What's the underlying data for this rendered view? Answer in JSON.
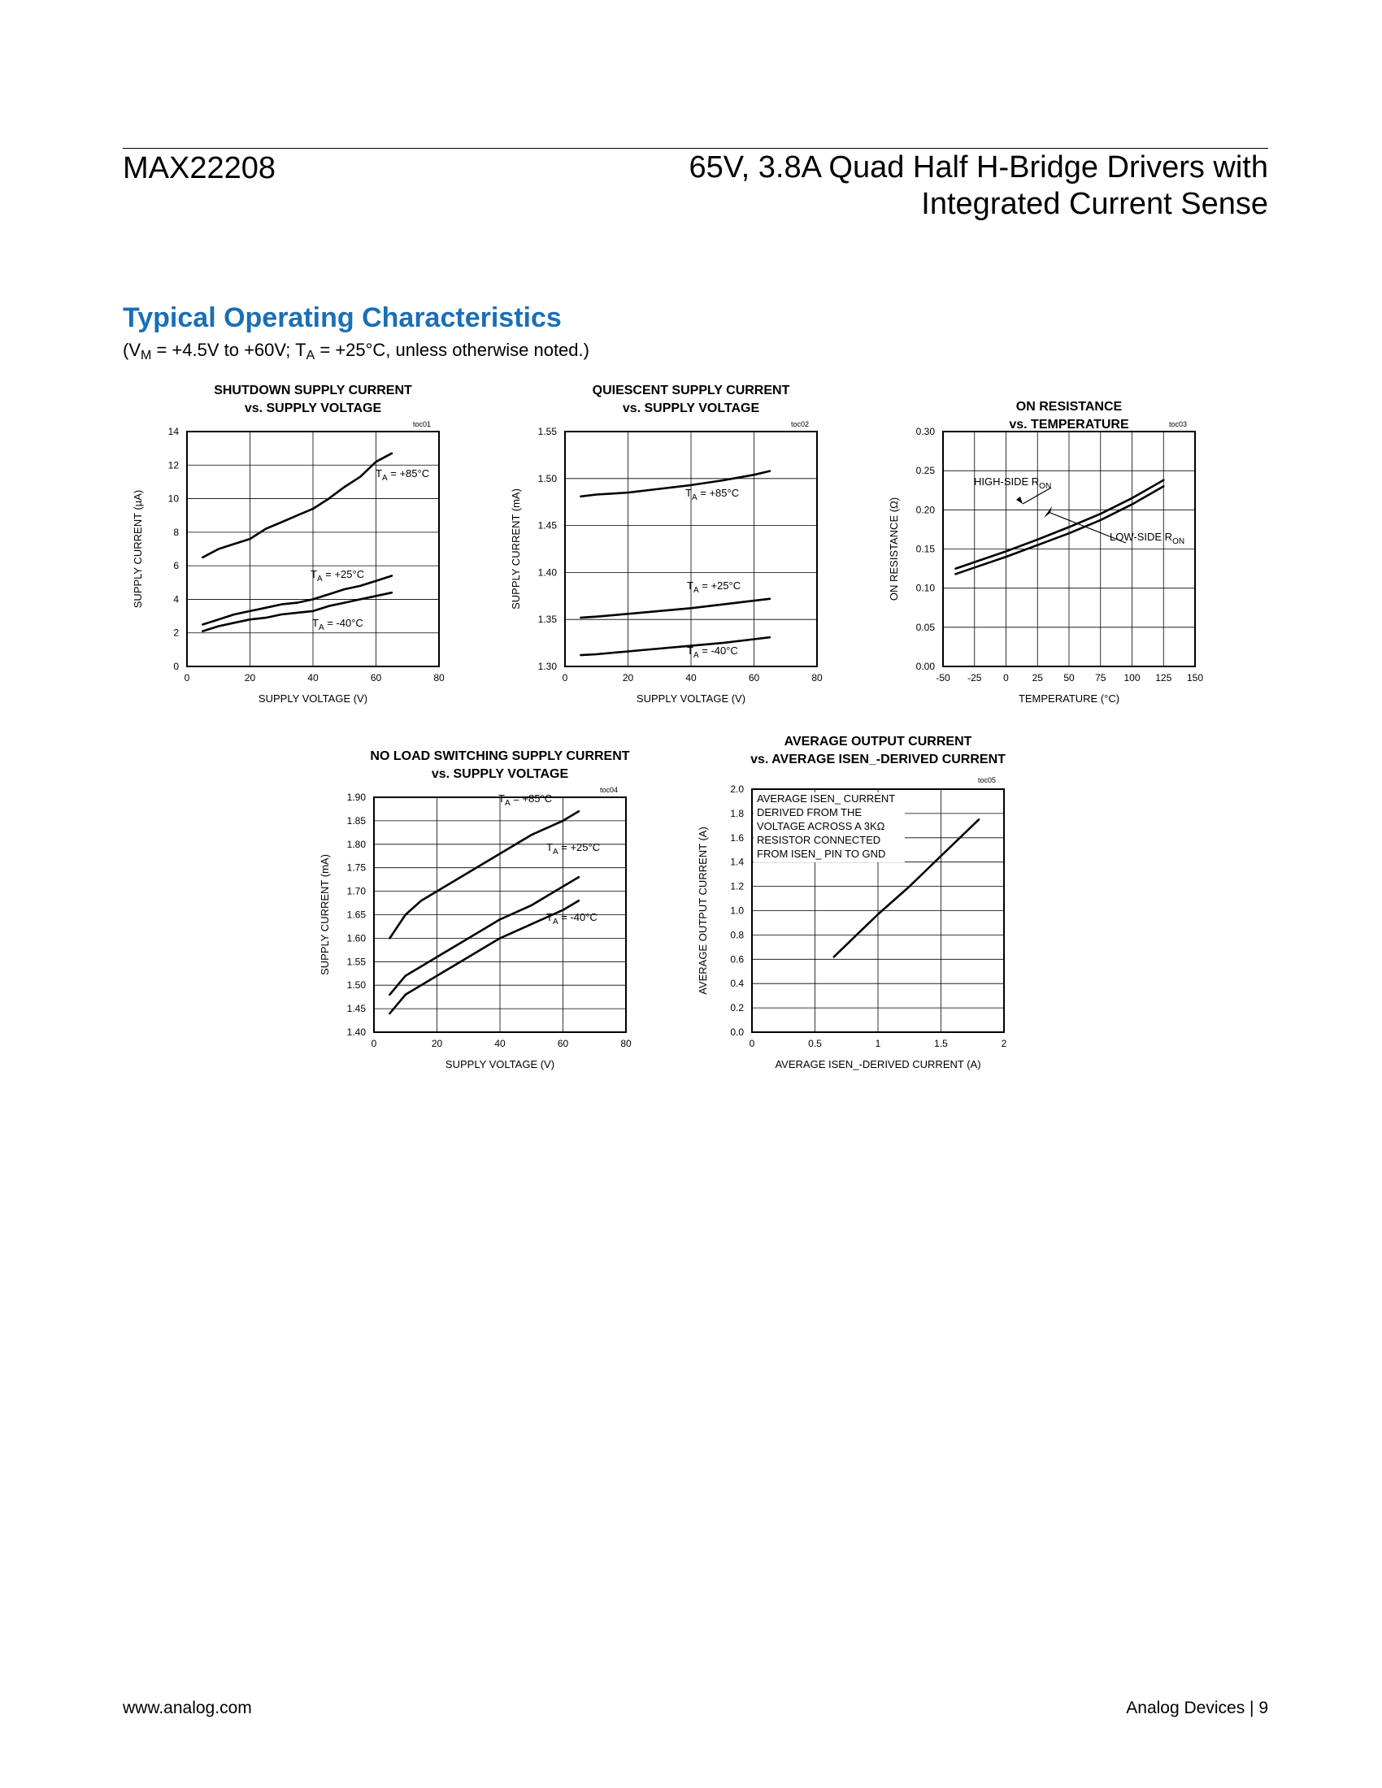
{
  "header": {
    "part_number": "MAX22208",
    "title_line1": "65V, 3.8A Quad Half H-Bridge Drivers with",
    "title_line2": "Integrated Current Sense"
  },
  "section": {
    "title": "Typical Operating Characteristics",
    "cond_open": "(V",
    "cond_sub1": "M",
    "cond_mid": " = +4.5V to +60V; T",
    "cond_sub2": "A",
    "cond_end": " = +25°C, unless otherwise noted.)"
  },
  "footer": {
    "website": "www.analog.com",
    "page": "Analog Devices  |  9"
  },
  "chart_data": [
    {
      "id": "toc01",
      "type": "line",
      "title": [
        "SHUTDOWN SUPPLY CURRENT",
        "vs. SUPPLY VOLTAGE"
      ],
      "xlabel": "SUPPLY VOLTAGE (V)",
      "ylabel": "SUPPLY CURRENT (µA)",
      "xlim": [
        0,
        80
      ],
      "ylim": [
        0,
        14
      ],
      "xticks": [
        0,
        20,
        40,
        60,
        80
      ],
      "yticks": [
        0,
        2,
        4,
        6,
        8,
        10,
        12,
        14
      ],
      "grid": true,
      "series": [
        {
          "name": "TA = +85°C",
          "x": [
            5,
            10,
            15,
            20,
            25,
            30,
            35,
            40,
            45,
            50,
            55,
            60,
            65
          ],
          "y": [
            6.5,
            7.0,
            7.3,
            7.6,
            8.2,
            8.6,
            9.0,
            9.4,
            10.0,
            10.7,
            11.3,
            12.2,
            12.7
          ]
        },
        {
          "name": "TA = +25°C",
          "x": [
            5,
            10,
            15,
            20,
            25,
            30,
            35,
            40,
            45,
            50,
            55,
            60,
            65
          ],
          "y": [
            2.5,
            2.8,
            3.1,
            3.3,
            3.5,
            3.7,
            3.8,
            4.0,
            4.3,
            4.6,
            4.8,
            5.1,
            5.4
          ]
        },
        {
          "name": "TA = -40°C",
          "x": [
            5,
            10,
            15,
            20,
            25,
            30,
            35,
            40,
            45,
            50,
            55,
            60,
            65
          ],
          "y": [
            2.1,
            2.4,
            2.6,
            2.8,
            2.9,
            3.1,
            3.2,
            3.3,
            3.6,
            3.8,
            4.0,
            4.2,
            4.4
          ]
        }
      ]
    },
    {
      "id": "toc02",
      "type": "line",
      "title": [
        "QUIESCENT SUPPLY CURRENT",
        "vs. SUPPLY VOLTAGE"
      ],
      "xlabel": "SUPPLY VOLTAGE (V)",
      "ylabel": "SUPPLY CURRENT (mA)",
      "xlim": [
        0,
        80
      ],
      "ylim": [
        1.3,
        1.55
      ],
      "xticks": [
        0,
        20,
        40,
        60,
        80
      ],
      "yticks": [
        1.3,
        1.35,
        1.4,
        1.45,
        1.5,
        1.55
      ],
      "grid": true,
      "series": [
        {
          "name": "TA = +85°C",
          "x": [
            5,
            10,
            15,
            20,
            30,
            40,
            50,
            60,
            65
          ],
          "y": [
            1.481,
            1.483,
            1.484,
            1.485,
            1.489,
            1.493,
            1.498,
            1.504,
            1.508
          ]
        },
        {
          "name": "TA = +25°C",
          "x": [
            5,
            10,
            20,
            30,
            40,
            50,
            60,
            65
          ],
          "y": [
            1.352,
            1.353,
            1.356,
            1.359,
            1.362,
            1.366,
            1.37,
            1.372
          ]
        },
        {
          "name": "TA = -40°C",
          "x": [
            5,
            10,
            20,
            30,
            40,
            50,
            60,
            65
          ],
          "y": [
            1.312,
            1.313,
            1.316,
            1.319,
            1.322,
            1.325,
            1.329,
            1.331
          ]
        }
      ]
    },
    {
      "id": "toc03",
      "type": "line",
      "title": [
        "ON RESISTANCE",
        "vs. TEMPERATURE"
      ],
      "xlabel": "TEMPERATURE (°C)",
      "ylabel": "ON RESISTANCE (Ω)",
      "xlim": [
        -50,
        150
      ],
      "ylim": [
        0,
        0.3
      ],
      "xticks": [
        -50,
        -25,
        0,
        25,
        50,
        75,
        100,
        125,
        150
      ],
      "yticks": [
        0.0,
        0.05,
        0.1,
        0.15,
        0.2,
        0.25,
        0.3
      ],
      "grid": true,
      "series": [
        {
          "name": "HIGH-SIDE RON",
          "x": [
            -40,
            -20,
            0,
            25,
            50,
            75,
            100,
            125
          ],
          "y": [
            0.125,
            0.136,
            0.147,
            0.162,
            0.178,
            0.195,
            0.215,
            0.238
          ]
        },
        {
          "name": "LOW-SIDE RON",
          "x": [
            -40,
            -20,
            0,
            25,
            50,
            75,
            100,
            125
          ],
          "y": [
            0.118,
            0.129,
            0.14,
            0.155,
            0.17,
            0.187,
            0.207,
            0.23
          ]
        }
      ]
    },
    {
      "id": "toc04",
      "type": "line",
      "title": [
        "NO LOAD SWITCHING SUPPLY CURRENT",
        "vs. SUPPLY VOLTAGE"
      ],
      "xlabel": "SUPPLY VOLTAGE (V)",
      "ylabel": "SUPPLY CURRENT (mA)",
      "xlim": [
        0,
        80
      ],
      "ylim": [
        1.4,
        1.9
      ],
      "xticks": [
        0,
        20,
        40,
        60,
        80
      ],
      "yticks": [
        1.4,
        1.45,
        1.5,
        1.55,
        1.6,
        1.65,
        1.7,
        1.75,
        1.8,
        1.85,
        1.9
      ],
      "grid": true,
      "series": [
        {
          "name": "TA = +85°C",
          "x": [
            5,
            10,
            15,
            20,
            30,
            40,
            50,
            60,
            65
          ],
          "y": [
            1.6,
            1.65,
            1.68,
            1.7,
            1.74,
            1.78,
            1.82,
            1.85,
            1.87
          ]
        },
        {
          "name": "TA = +25°C",
          "x": [
            5,
            10,
            15,
            20,
            30,
            40,
            50,
            60,
            65
          ],
          "y": [
            1.48,
            1.52,
            1.54,
            1.56,
            1.6,
            1.64,
            1.67,
            1.71,
            1.73
          ]
        },
        {
          "name": "TA = -40°C",
          "x": [
            5,
            10,
            15,
            20,
            30,
            40,
            50,
            60,
            65
          ],
          "y": [
            1.44,
            1.48,
            1.5,
            1.52,
            1.56,
            1.6,
            1.63,
            1.66,
            1.68
          ]
        }
      ]
    },
    {
      "id": "toc05",
      "type": "line",
      "title": [
        "AVERAGE OUTPUT CURRENT",
        "vs. AVERAGE ISEN_-DERIVED CURRENT"
      ],
      "xlabel": "AVERAGE ISEN_-DERIVED CURRENT (A)",
      "ylabel": "AVERAGE OUTPUT CURRENT (A)",
      "xlim": [
        0,
        2
      ],
      "ylim": [
        0,
        2
      ],
      "xticks": [
        0.0,
        0.5,
        1.0,
        1.5,
        2.0
      ],
      "yticks": [
        0.0,
        0.2,
        0.4,
        0.6,
        0.8,
        1.0,
        1.2,
        1.4,
        1.6,
        1.8,
        2.0
      ],
      "grid": true,
      "note": [
        "AVERAGE ISEN_ CURRENT",
        "DERIVED FROM THE",
        "VOLTAGE ACROSS A 3KΩ",
        "RESISTOR CONNECTED",
        "FROM ISEN_ PIN TO GND"
      ],
      "series": [
        {
          "x": [
            0.65,
            0.9,
            1.0,
            1.25,
            1.5,
            1.8
          ],
          "y": [
            0.62,
            0.87,
            0.97,
            1.2,
            1.45,
            1.75
          ]
        }
      ]
    }
  ],
  "chart_labels": [
    [
      {
        "pre": "T",
        "sub": "A",
        "post": " = +85°C",
        "series": 0
      },
      {
        "pre": "T",
        "sub": "A",
        "post": " = +25°C",
        "series": 1
      },
      {
        "pre": "T",
        "sub": "A",
        "post": " = -40°C",
        "series": 2
      }
    ],
    [
      {
        "pre": "T",
        "sub": "A",
        "post": " = +85°C",
        "series": 0
      },
      {
        "pre": "T",
        "sub": "A",
        "post": " = +25°C",
        "series": 1
      },
      {
        "pre": "T",
        "sub": "A",
        "post": " = -40°C",
        "series": 2
      }
    ],
    [
      {
        "pre": "HIGH-SIDE R",
        "sub": "ON",
        "post": "",
        "series": 0
      },
      {
        "pre": "LOW-SIDE R",
        "sub": "ON",
        "post": "",
        "series": 1
      }
    ],
    [
      {
        "pre": "T",
        "sub": "A",
        "post": " = +85°C",
        "series": 0
      },
      {
        "pre": "T",
        "sub": "A",
        "post": " = +25°C",
        "series": 1
      },
      {
        "pre": "T",
        "sub": "A",
        "post": " = -40°C",
        "series": 2
      }
    ],
    []
  ]
}
